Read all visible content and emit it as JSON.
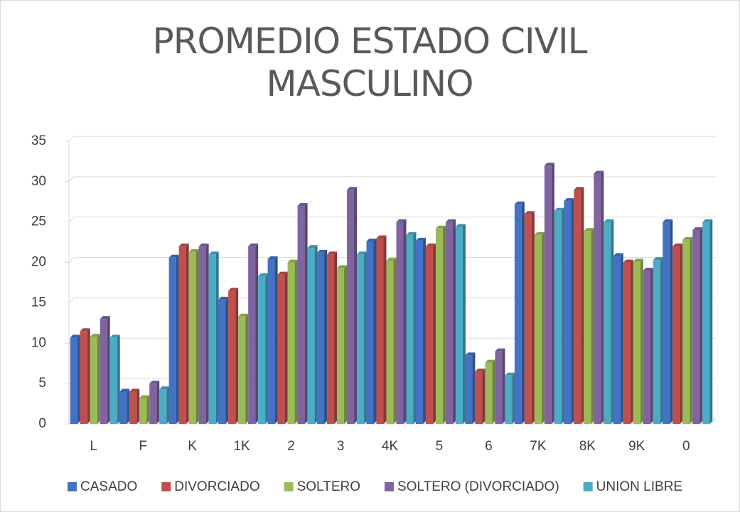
{
  "chart_data": {
    "type": "bar",
    "title": "PROMEDIO ESTADO CIVIL MASCULINO",
    "categories": [
      "L",
      "F",
      "K",
      "1K",
      "2",
      "3",
      "4K",
      "5",
      "6",
      "7K",
      "8K",
      "9K",
      "0"
    ],
    "series": [
      {
        "name": "CASADO",
        "color": "#4472c4",
        "values": [
          10.7,
          4,
          20.6,
          15.4,
          20.4,
          21.2,
          22.6,
          22.7,
          8.5,
          27.2,
          27.6,
          20.8,
          25
        ]
      },
      {
        "name": "DIVORCIADO",
        "color": "#c0504d",
        "values": [
          11.5,
          4,
          22,
          16.5,
          18.5,
          21,
          23,
          22,
          6.5,
          26,
          29,
          20,
          22
        ]
      },
      {
        "name": "SOLTERO",
        "color": "#9bbb59",
        "values": [
          10.8,
          3.2,
          21.3,
          13.3,
          20,
          19.3,
          20.2,
          24.2,
          7.6,
          23.4,
          23.9,
          20.1,
          22.8
        ]
      },
      {
        "name": "SOLTERO (DIVORCIADO)",
        "color": "#8064a2",
        "values": [
          13,
          5,
          22,
          22,
          27,
          29,
          25,
          25,
          9,
          32,
          31,
          19,
          24
        ]
      },
      {
        "name": "UNION LIBRE",
        "color": "#4bacc6",
        "values": [
          10.7,
          4.3,
          21,
          18.3,
          21.8,
          21,
          23.4,
          24.4,
          6,
          26.4,
          25,
          20.3,
          25
        ]
      }
    ],
    "ylim": [
      0,
      35
    ],
    "yticks": [
      0,
      5,
      10,
      15,
      20,
      25,
      30,
      35
    ],
    "grid": true,
    "legend": "bottom"
  }
}
